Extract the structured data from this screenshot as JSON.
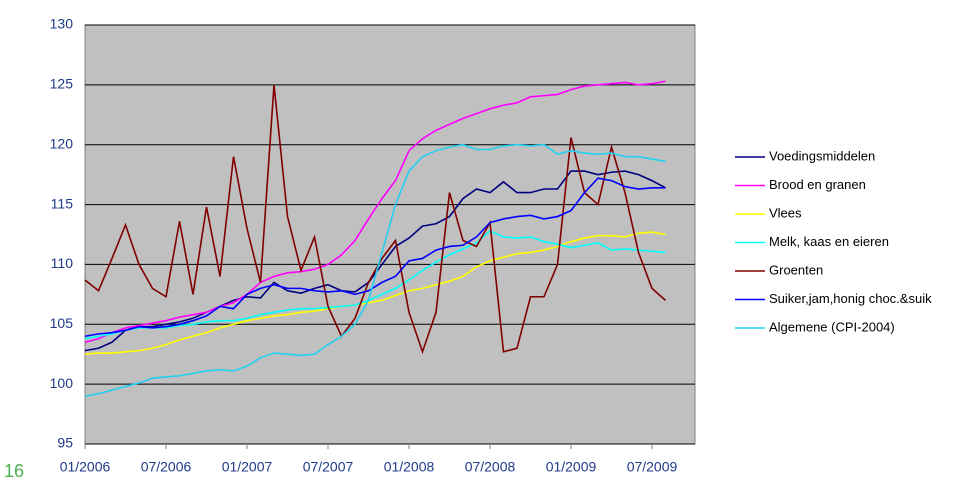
{
  "chart_data": {
    "type": "line",
    "categories": [
      "01/2006",
      null,
      null,
      null,
      null,
      null,
      "07/2006",
      null,
      null,
      null,
      null,
      null,
      "01/2007",
      null,
      null,
      null,
      null,
      null,
      "07/2007",
      null,
      null,
      null,
      null,
      null,
      "01/2008",
      null,
      null,
      null,
      null,
      null,
      "07/2008",
      null,
      null,
      null,
      null,
      null,
      "01/2009",
      null,
      null,
      null,
      null,
      null,
      "07/2009",
      null
    ],
    "ylim": [
      95,
      130
    ],
    "yticks": [
      95,
      100,
      105,
      110,
      115,
      120,
      125,
      130
    ],
    "grid": true,
    "legend": "right",
    "series": [
      {
        "name": "Voedingsmiddelen",
        "color": "#000080",
        "values": [
          102.8,
          103,
          103.5,
          104.5,
          104.8,
          104.8,
          105,
          105.2,
          105.5,
          106,
          106.5,
          107,
          107.3,
          107.2,
          108.5,
          107.8,
          107.6,
          108,
          108.3,
          107.8,
          107.7,
          108.5,
          110,
          111.5,
          112.2,
          113.2,
          113.4,
          114,
          115.5,
          116.3,
          116,
          116.9,
          116,
          116,
          116.3,
          116.3,
          117.8,
          117.8,
          117.5,
          117.7,
          117.8,
          117.5,
          117,
          116.4
        ]
      },
      {
        "name": "Brood en granen",
        "color": "#ff00ff",
        "values": [
          103.5,
          103.8,
          104.3,
          104.7,
          104.9,
          105.1,
          105.3,
          105.6,
          105.8,
          106,
          106.5,
          106.8,
          107.5,
          108.5,
          109,
          109.3,
          109.4,
          109.6,
          110,
          110.8,
          112,
          113.8,
          115.5,
          117,
          119.5,
          120.5,
          121.2,
          121.7,
          122.2,
          122.6,
          123,
          123.3,
          123.5,
          124,
          124.1,
          124.2,
          124.6,
          124.9,
          125,
          125.1,
          125.2,
          125,
          125.1,
          125.3
        ]
      },
      {
        "name": "Vlees",
        "color": "#ffff00",
        "values": [
          102.5,
          102.6,
          102.6,
          102.7,
          102.8,
          103,
          103.3,
          103.7,
          104,
          104.3,
          104.7,
          105,
          105.3,
          105.5,
          105.7,
          105.8,
          106,
          106.1,
          106.3,
          106.5,
          106.6,
          106.8,
          107,
          107.4,
          107.8,
          108,
          108.3,
          108.6,
          109,
          109.8,
          110.3,
          110.6,
          110.9,
          111,
          111.2,
          111.5,
          111.9,
          112.2,
          112.4,
          112.4,
          112.3,
          112.6,
          112.7,
          112.5
        ]
      },
      {
        "name": "Melk, kaas en eieren",
        "color": "#00ffff",
        "values": [
          103.8,
          104,
          104.2,
          104.5,
          104.7,
          104.7,
          104.7,
          104.9,
          105,
          105.2,
          105.3,
          105.3,
          105.5,
          105.8,
          106,
          106.2,
          106.3,
          106.3,
          106.4,
          106.5,
          106.6,
          107,
          107.5,
          108,
          108.7,
          109.5,
          110.2,
          110.8,
          111.3,
          111.8,
          112.8,
          112.3,
          112.2,
          112.3,
          111.9,
          111.7,
          111.4,
          111.6,
          111.8,
          111.2,
          111.3,
          111.2,
          111.1,
          111
        ]
      },
      {
        "name": "Groenten",
        "color": "#800000",
        "values": [
          108.7,
          107.8,
          110.5,
          113.3,
          110,
          108,
          107.3,
          113.6,
          107.5,
          114.8,
          109,
          119,
          113,
          108.5,
          125,
          114,
          109.5,
          112.3,
          106.5,
          104,
          105.5,
          108.5,
          110.5,
          112,
          106,
          102.7,
          106,
          116,
          112,
          111.5,
          113.5,
          102.7,
          103,
          107.3,
          107.3,
          110,
          120.6,
          116,
          115,
          119.8,
          116,
          111,
          108,
          107
        ]
      },
      {
        "name": "Suiker,jam,honig choc.&suik",
        "color": "#0000ff",
        "values": [
          104,
          104.2,
          104.3,
          104.5,
          104.8,
          104.7,
          104.8,
          105,
          105.3,
          105.7,
          106.5,
          106.3,
          107.5,
          108,
          108.3,
          108,
          108,
          107.8,
          107.7,
          107.8,
          107.5,
          107.8,
          108.5,
          109,
          110.3,
          110.5,
          111.2,
          111.5,
          111.6,
          112.3,
          113.5,
          113.8,
          114,
          114.1,
          113.8,
          114,
          114.5,
          116,
          117.2,
          117,
          116.5,
          116.3,
          116.4,
          116.4
        ]
      },
      {
        "name": "Algemene (CPI-2004)",
        "color": "#22d0f0",
        "values": [
          99,
          99.2,
          99.5,
          99.8,
          100.1,
          100.5,
          100.6,
          100.7,
          100.9,
          101.1,
          101.2,
          101.1,
          101.5,
          102.2,
          102.6,
          102.5,
          102.4,
          102.5,
          103.3,
          104,
          105,
          107,
          111,
          115,
          117.8,
          119,
          119.5,
          119.8,
          120,
          119.6,
          119.6,
          119.9,
          120,
          119.9,
          120,
          119.2,
          119.5,
          119.3,
          119.2,
          119.3,
          119,
          119,
          118.8,
          118.6
        ]
      }
    ]
  },
  "page_number": "16"
}
